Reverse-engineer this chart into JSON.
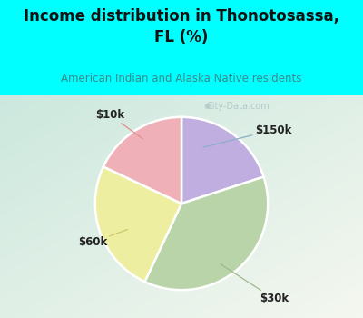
{
  "title": "Income distribution in Thonotosassa,\nFL (%)",
  "subtitle": "American Indian and Alaska Native residents",
  "slices": [
    {
      "label": "$150k",
      "value": 20,
      "color": "#c0aee0"
    },
    {
      "label": "$30k",
      "value": 37,
      "color": "#b8d4a8"
    },
    {
      "label": "$60k",
      "value": 25,
      "color": "#eeeea0"
    },
    {
      "label": "$10k",
      "value": 18,
      "color": "#f0b0b8"
    }
  ],
  "background_top": "#00ffff",
  "background_chart_tl": "#d8efe8",
  "background_chart_br": "#f5faf5",
  "title_color": "#111111",
  "subtitle_color": "#3a8a8a",
  "watermark": "City-Data.com",
  "startangle": 90,
  "label_fontsize": 8.5
}
